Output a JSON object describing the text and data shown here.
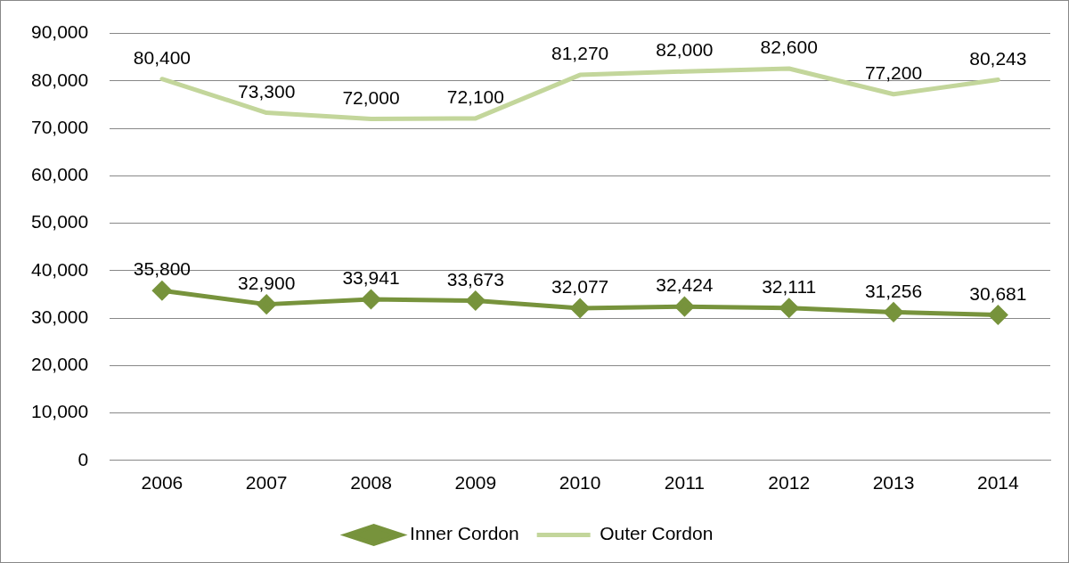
{
  "chart_data": {
    "type": "line",
    "categories": [
      "2006",
      "2007",
      "2008",
      "2009",
      "2010",
      "2011",
      "2012",
      "2013",
      "2014"
    ],
    "series": [
      {
        "name": "Inner Cordon",
        "color": "#77933c",
        "marker": "diamond",
        "values": [
          35800,
          32900,
          33941,
          33673,
          32077,
          32424,
          32111,
          31256,
          30681
        ],
        "value_labels": [
          "35,800",
          "32,900",
          "33,941",
          "33,673",
          "32,077",
          "32,424",
          "32,111",
          "31,256",
          "30,681"
        ]
      },
      {
        "name": "Outer Cordon",
        "color": "#c3d69b",
        "marker": "none",
        "values": [
          80400,
          73300,
          72000,
          72100,
          81270,
          82000,
          82600,
          77200,
          80243
        ],
        "value_labels": [
          "80,400",
          "73,300",
          "72,000",
          "72,100",
          "81,270",
          "82,000",
          "82,600",
          "77,200",
          "80,243"
        ]
      }
    ],
    "ylim": [
      0,
      90000
    ],
    "yticks": [
      {
        "value": 0,
        "label": "0"
      },
      {
        "value": 10000,
        "label": "10,000"
      },
      {
        "value": 20000,
        "label": "20,000"
      },
      {
        "value": 30000,
        "label": "30,000"
      },
      {
        "value": 40000,
        "label": "40,000"
      },
      {
        "value": 50000,
        "label": "50,000"
      },
      {
        "value": 60000,
        "label": "60,000"
      },
      {
        "value": 70000,
        "label": "70,000"
      },
      {
        "value": 80000,
        "label": "80,000"
      },
      {
        "value": 90000,
        "label": "90,000"
      }
    ],
    "grid": "y",
    "legend": "bottom",
    "line_style": "solid"
  }
}
